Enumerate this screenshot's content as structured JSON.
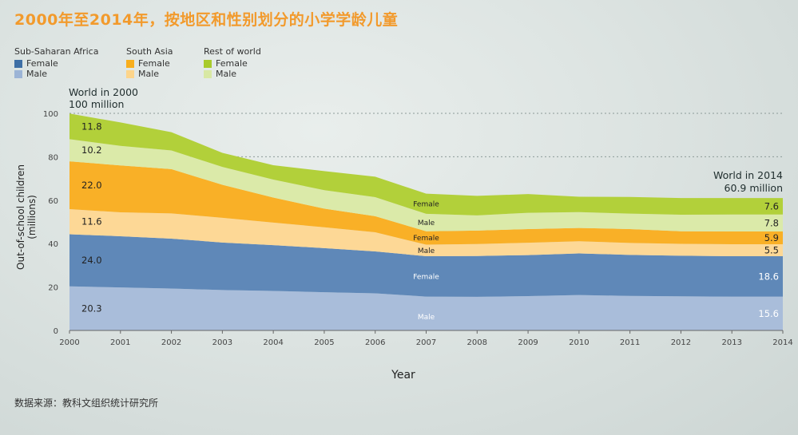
{
  "title": "2000年至2014年，按地区和性别划分的小学学龄儿童",
  "source": "数据来源：教科文组织统计研究所",
  "legend": [
    {
      "region": "Sub-Saharan Africa",
      "entries": [
        {
          "label": "Female",
          "color": "#3e6fa5"
        },
        {
          "label": "Male",
          "color": "#9cb4d6"
        }
      ]
    },
    {
      "region": "South Asia",
      "entries": [
        {
          "label": "Female",
          "color": "#f8ae1d"
        },
        {
          "label": "Male",
          "color": "#fdd58b"
        }
      ]
    },
    {
      "region": "Rest of world",
      "entries": [
        {
          "label": "Female",
          "color": "#a8cb2c"
        },
        {
          "label": "Male",
          "color": "#d8e8a4"
        }
      ]
    }
  ],
  "annotations": {
    "world_2000_line1": "World in 2000",
    "world_2000_line2": "100 million",
    "world_2014_line1": "World in 2014",
    "world_2014_line2": "60.9 million"
  },
  "chart_data": {
    "type": "area",
    "stacked": true,
    "xlabel": "Year",
    "ylabel": "Out-of-school children (millions)",
    "ylim": [
      0,
      100
    ],
    "yticks": [
      0,
      20,
      40,
      60,
      80,
      100
    ],
    "gridlines_at": [
      80,
      100
    ],
    "x": [
      2000,
      2001,
      2002,
      2003,
      2004,
      2005,
      2006,
      2007,
      2008,
      2009,
      2010,
      2011,
      2012,
      2013,
      2014
    ],
    "series": [
      {
        "name": "Sub-Saharan Africa Male",
        "color": "#a9bdda",
        "values": [
          20.3,
          19.8,
          19.3,
          18.6,
          18.2,
          17.6,
          17.1,
          15.6,
          15.5,
          15.8,
          16.3,
          15.9,
          15.7,
          15.6,
          15.6
        ]
      },
      {
        "name": "Sub-Saharan Africa Female",
        "color": "#5f88b8",
        "values": [
          24.0,
          23.6,
          23.0,
          21.9,
          21.1,
          20.3,
          19.3,
          18.6,
          18.8,
          18.9,
          19.2,
          18.9,
          18.7,
          18.6,
          18.6
        ]
      },
      {
        "name": "South Asia Male",
        "color": "#fdd896",
        "values": [
          11.6,
          11.0,
          11.6,
          11.4,
          10.4,
          9.6,
          8.8,
          5.3,
          5.5,
          5.7,
          5.6,
          5.5,
          5.5,
          5.5,
          5.5
        ]
      },
      {
        "name": "South Asia Female",
        "color": "#f9b027",
        "values": [
          22.0,
          21.6,
          20.4,
          15.2,
          11.5,
          8.6,
          7.4,
          6.2,
          6.2,
          6.3,
          6.1,
          6.4,
          5.8,
          5.9,
          5.9
        ]
      },
      {
        "name": "Rest of world Male",
        "color": "#dbeaa9",
        "values": [
          10.2,
          9.0,
          8.6,
          8.2,
          8.3,
          8.5,
          8.8,
          8.0,
          7.0,
          7.5,
          7.3,
          7.1,
          7.6,
          7.8,
          7.8
        ]
      },
      {
        "name": "Rest of world Female",
        "color": "#b2d03a",
        "values": [
          11.8,
          10.8,
          8.4,
          6.5,
          6.6,
          8.8,
          9.4,
          9.3,
          9.0,
          8.6,
          7.1,
          7.7,
          7.7,
          7.6,
          7.6
        ]
      }
    ],
    "value_labels_2000": [
      "20.3",
      "24.0",
      "11.6",
      "22.0",
      "10.2",
      "11.8"
    ],
    "value_labels_2014": [
      "15.6",
      "18.6",
      "5.5",
      "5.9",
      "7.8",
      "7.6"
    ],
    "mid_labels": [
      "Male",
      "Female",
      "Male",
      "Female",
      "Male",
      "Female"
    ]
  }
}
